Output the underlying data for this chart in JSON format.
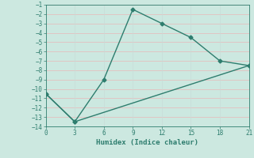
{
  "line1_x": [
    0,
    3,
    6,
    9,
    12,
    15,
    18,
    21
  ],
  "line1_y": [
    -10.5,
    -13.5,
    -9,
    -1.5,
    -3,
    -4.5,
    -7,
    -7.5
  ],
  "line2_x": [
    0,
    3,
    21
  ],
  "line2_y": [
    -10.5,
    -13.5,
    -7.5
  ],
  "line_color": "#2e7d6e",
  "bg_color": "#cce8e0",
  "grid_color_h": "#e8b8b8",
  "grid_color_v": "#c8dcd8",
  "xlabel": "Humidex (Indice chaleur)",
  "xlim": [
    0,
    21
  ],
  "ylim": [
    -14,
    -1
  ],
  "xticks": [
    0,
    3,
    6,
    9,
    12,
    15,
    18,
    21
  ],
  "yticks": [
    -14,
    -13,
    -12,
    -11,
    -10,
    -9,
    -8,
    -7,
    -6,
    -5,
    -4,
    -3,
    -2,
    -1
  ],
  "marker": "D",
  "markersize": 2.5,
  "linewidth": 1.0,
  "linestyle": "-",
  "tick_color": "#2e7d6e",
  "label_fontsize": 5.5,
  "xlabel_fontsize": 6.5
}
